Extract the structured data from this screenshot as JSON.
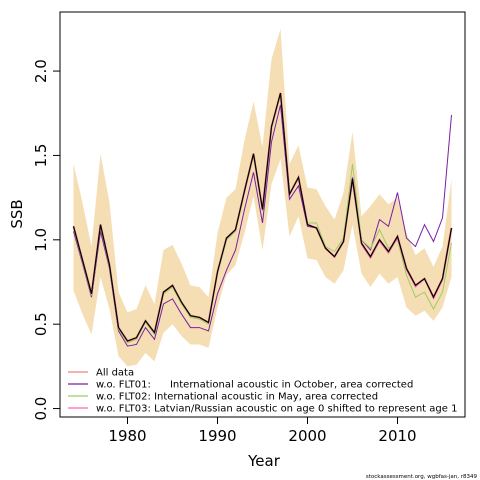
{
  "chart_data": {
    "type": "line",
    "xlabel": "Year",
    "ylabel": "SSB",
    "xlim": [
      1972.5,
      2017.5
    ],
    "ylim": [
      -0.05,
      2.35
    ],
    "x_ticks": [
      1980,
      1990,
      2000,
      2010
    ],
    "y_ticks": [
      0.0,
      0.5,
      1.0,
      1.5,
      2.0
    ],
    "y_tick_labels": [
      "0.0",
      "0.5",
      "1.0",
      "1.5",
      "2.0"
    ],
    "grid": false,
    "legend_position": "bottom-left",
    "credit": "stockassessment.org, wgbfas-jan, r8349",
    "band": {
      "color": "#f5deb3",
      "x": [
        1974,
        1975,
        1976,
        1977,
        1978,
        1979,
        1980,
        1981,
        1982,
        1983,
        1984,
        1985,
        1986,
        1987,
        1988,
        1989,
        1990,
        1991,
        1992,
        1993,
        1994,
        1995,
        1996,
        1997,
        1998,
        1999,
        2000,
        2001,
        2002,
        2003,
        2004,
        2005,
        2006,
        2007,
        2008,
        2009,
        2010,
        2011,
        2012,
        2013,
        2014,
        2015,
        2016
      ],
      "upper": [
        1.45,
        1.22,
        0.96,
        1.51,
        1.22,
        0.69,
        0.57,
        0.59,
        0.73,
        0.62,
        0.94,
        0.97,
        0.86,
        0.73,
        0.72,
        0.66,
        1.04,
        1.25,
        1.3,
        1.59,
        1.82,
        1.55,
        2.07,
        2.25,
        1.45,
        1.56,
        1.31,
        1.3,
        1.2,
        1.12,
        1.28,
        1.64,
        1.14,
        1.2,
        1.27,
        1.21,
        1.25,
        1.04,
        0.91,
        0.95,
        0.84,
        0.96,
        1.36
      ],
      "lower": [
        0.7,
        0.56,
        0.44,
        0.78,
        0.59,
        0.31,
        0.25,
        0.26,
        0.33,
        0.28,
        0.45,
        0.5,
        0.43,
        0.38,
        0.38,
        0.36,
        0.6,
        0.79,
        0.85,
        1.04,
        1.26,
        0.94,
        1.33,
        1.48,
        1.02,
        1.14,
        0.89,
        0.88,
        0.78,
        0.74,
        0.82,
        1.09,
        0.8,
        0.72,
        0.8,
        0.74,
        0.78,
        0.6,
        0.55,
        0.58,
        0.52,
        0.6,
        0.78
      ]
    },
    "series": [
      {
        "name": "All data",
        "color": "#f08080",
        "x": [
          1974,
          1975,
          1976,
          1977,
          1978,
          1979,
          1980,
          1981,
          1982,
          1983,
          1984,
          1985,
          1986,
          1987,
          1988,
          1989,
          1990,
          1991,
          1992,
          1993,
          1994,
          1995,
          1996,
          1997,
          1998,
          1999,
          2000,
          2001,
          2002,
          2003,
          2004,
          2005,
          2006,
          2007,
          2008,
          2009,
          2010,
          2011,
          2012,
          2013,
          2014,
          2015,
          2016
        ],
        "values": [
          1.08,
          0.88,
          0.68,
          1.09,
          0.85,
          0.48,
          0.4,
          0.42,
          0.52,
          0.45,
          0.69,
          0.73,
          0.63,
          0.55,
          0.54,
          0.51,
          0.81,
          1.01,
          1.06,
          1.29,
          1.51,
          1.18,
          1.67,
          1.87,
          1.27,
          1.37,
          1.09,
          1.07,
          0.95,
          0.9,
          0.99,
          1.36,
          0.98,
          0.9,
          1.0,
          0.93,
          1.02,
          0.83,
          0.73,
          0.77,
          0.66,
          0.77,
          1.07
        ]
      },
      {
        "name": "w.o. FLT01:      International acoustic in October, area corrected",
        "color": "#7b1fa2",
        "x": [
          1974,
          1975,
          1976,
          1977,
          1978,
          1979,
          1980,
          1981,
          1982,
          1983,
          1984,
          1985,
          1986,
          1987,
          1988,
          1989,
          1990,
          1991,
          1992,
          1993,
          1994,
          1995,
          1996,
          1997,
          1998,
          1999,
          2000,
          2001,
          2002,
          2003,
          2004,
          2005,
          2006,
          2007,
          2008,
          2009,
          2010,
          2011,
          2012,
          2013,
          2014,
          2015,
          2016
        ],
        "values": [
          1.05,
          0.86,
          0.66,
          1.05,
          0.83,
          0.46,
          0.37,
          0.38,
          0.48,
          0.41,
          0.62,
          0.65,
          0.56,
          0.48,
          0.48,
          0.46,
          0.68,
          0.82,
          0.94,
          1.18,
          1.4,
          1.1,
          1.58,
          1.8,
          1.24,
          1.32,
          1.08,
          1.07,
          0.95,
          0.9,
          0.99,
          1.37,
          1.0,
          0.94,
          1.12,
          1.08,
          1.28,
          1.01,
          0.96,
          1.09,
          0.99,
          1.13,
          1.74
        ]
      },
      {
        "name": "w.o. FLT02: International acoustic in May, area corrected",
        "color": "#9ccc65",
        "x": [
          1974,
          1975,
          1976,
          1977,
          1978,
          1979,
          1980,
          1981,
          1982,
          1983,
          1984,
          1985,
          1986,
          1987,
          1988,
          1989,
          1990,
          1991,
          1992,
          1993,
          1994,
          1995,
          1996,
          1997,
          1998,
          1999,
          2000,
          2001,
          2002,
          2003,
          2004,
          2005,
          2006,
          2007,
          2008,
          2009,
          2010,
          2011,
          2012,
          2013,
          2014,
          2015,
          2016
        ],
        "values": [
          1.07,
          0.87,
          0.67,
          1.08,
          0.84,
          0.47,
          0.39,
          0.41,
          0.51,
          0.44,
          0.68,
          0.72,
          0.62,
          0.54,
          0.53,
          0.5,
          0.8,
          1.0,
          1.05,
          1.28,
          1.5,
          1.17,
          1.66,
          1.86,
          1.28,
          1.36,
          1.1,
          1.1,
          0.96,
          0.93,
          1.01,
          1.45,
          1.0,
          0.95,
          1.06,
          0.95,
          1.0,
          0.79,
          0.66,
          0.69,
          0.59,
          0.69,
          0.98
        ]
      },
      {
        "name": "w.o. FLT03: Latvian/Russian acoustic on age 0 shifted to represent age 1",
        "color": "#ff69b4",
        "x": [
          1974,
          1975,
          1976,
          1977,
          1978,
          1979,
          1980,
          1981,
          1982,
          1983,
          1984,
          1985,
          1986,
          1987,
          1988,
          1989,
          1990,
          1991,
          1992,
          1993,
          1994,
          1995,
          1996,
          1997,
          1998,
          1999,
          2000,
          2001,
          2002,
          2003,
          2004,
          2005,
          2006,
          2007,
          2008,
          2009,
          2010,
          2011,
          2012,
          2013,
          2014,
          2015,
          2016
        ],
        "values": [
          1.08,
          0.88,
          0.68,
          1.09,
          0.85,
          0.48,
          0.4,
          0.42,
          0.52,
          0.45,
          0.69,
          0.73,
          0.63,
          0.55,
          0.54,
          0.51,
          0.81,
          1.01,
          1.06,
          1.29,
          1.51,
          1.18,
          1.67,
          1.87,
          1.27,
          1.37,
          1.09,
          1.07,
          0.95,
          0.9,
          0.99,
          1.35,
          0.97,
          0.89,
          0.99,
          0.92,
          1.01,
          0.82,
          0.72,
          0.77,
          0.65,
          0.76,
          1.06
        ]
      }
    ],
    "main_line": {
      "color": "#000000",
      "x": [
        1974,
        1975,
        1976,
        1977,
        1978,
        1979,
        1980,
        1981,
        1982,
        1983,
        1984,
        1985,
        1986,
        1987,
        1988,
        1989,
        1990,
        1991,
        1992,
        1993,
        1994,
        1995,
        1996,
        1997,
        1998,
        1999,
        2000,
        2001,
        2002,
        2003,
        2004,
        2005,
        2006,
        2007,
        2008,
        2009,
        2010,
        2011,
        2012,
        2013,
        2014,
        2015,
        2016
      ],
      "values": [
        1.08,
        0.88,
        0.68,
        1.09,
        0.85,
        0.48,
        0.4,
        0.42,
        0.52,
        0.45,
        0.69,
        0.73,
        0.63,
        0.55,
        0.54,
        0.51,
        0.81,
        1.01,
        1.06,
        1.29,
        1.51,
        1.18,
        1.67,
        1.87,
        1.27,
        1.37,
        1.09,
        1.07,
        0.95,
        0.9,
        0.99,
        1.36,
        0.98,
        0.9,
        1.0,
        0.93,
        1.02,
        0.83,
        0.73,
        0.77,
        0.66,
        0.77,
        1.07
      ]
    }
  }
}
